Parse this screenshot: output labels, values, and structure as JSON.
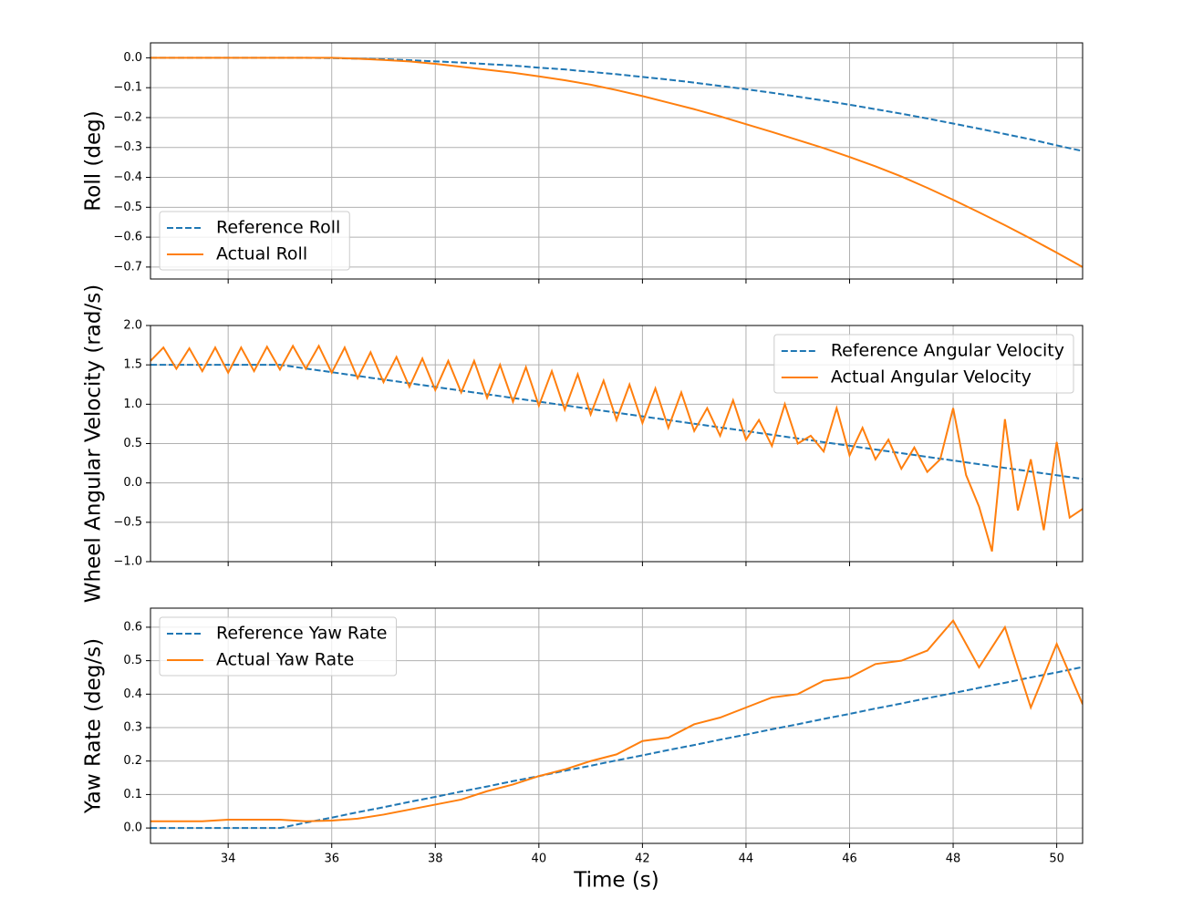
{
  "chart_data": [
    {
      "type": "line",
      "ylabel": "Roll (deg)",
      "legend": "lower left",
      "grid": true,
      "x": [
        32.5,
        33,
        33.5,
        34,
        34.5,
        35,
        35.5,
        36,
        36.5,
        37,
        37.5,
        38,
        38.5,
        39,
        39.5,
        40,
        40.5,
        41,
        41.5,
        42,
        42.5,
        43,
        43.5,
        44,
        44.5,
        45,
        45.5,
        46,
        46.5,
        47,
        47.5,
        48,
        48.5,
        49,
        49.5,
        50,
        50.5
      ],
      "xlim": [
        32.5,
        50.5
      ],
      "xticks": [
        34,
        36,
        38,
        40,
        42,
        44,
        46,
        48,
        50
      ],
      "ylim": [
        -0.74,
        0.05
      ],
      "yticks": [
        {
          "value": 0,
          "label": "0.0"
        },
        {
          "value": -0.1,
          "label": "−0.1"
        },
        {
          "value": -0.2,
          "label": "−0.2"
        },
        {
          "value": -0.3,
          "label": "−0.3"
        },
        {
          "value": -0.4,
          "label": "−0.4"
        },
        {
          "value": -0.5,
          "label": "−0.5"
        },
        {
          "value": -0.6,
          "label": "−0.6"
        },
        {
          "value": -0.7,
          "label": "−0.7"
        }
      ],
      "series": [
        {
          "name": "Reference Roll",
          "color": "#1f77b4",
          "linestyle": "dashed",
          "values": [
            0,
            0,
            0,
            0,
            0,
            0,
            0,
            -0.001,
            -0.003,
            -0.005,
            -0.008,
            -0.012,
            -0.016,
            -0.021,
            -0.026,
            -0.033,
            -0.039,
            -0.047,
            -0.055,
            -0.064,
            -0.073,
            -0.083,
            -0.094,
            -0.105,
            -0.117,
            -0.13,
            -0.143,
            -0.157,
            -0.172,
            -0.187,
            -0.203,
            -0.22,
            -0.237,
            -0.255,
            -0.273,
            -0.293,
            -0.312
          ]
        },
        {
          "name": "Actual Roll",
          "color": "#ff7f0e",
          "linestyle": "solid",
          "values": [
            0,
            0,
            0,
            0,
            0,
            0,
            0,
            0,
            -0.003,
            -0.007,
            -0.012,
            -0.02,
            -0.03,
            -0.04,
            -0.05,
            -0.062,
            -0.075,
            -0.09,
            -0.108,
            -0.128,
            -0.15,
            -0.172,
            -0.196,
            -0.222,
            -0.248,
            -0.275,
            -0.302,
            -0.332,
            -0.363,
            -0.397,
            -0.435,
            -0.475,
            -0.517,
            -0.56,
            -0.605,
            -0.652,
            -0.7
          ]
        }
      ]
    },
    {
      "type": "line",
      "ylabel": "Wheel Angular Velocity (rad/s)",
      "legend": "upper right",
      "grid": true,
      "x": [
        32.5,
        32.75,
        33,
        33.25,
        33.5,
        33.75,
        34,
        34.25,
        34.5,
        34.75,
        35,
        35.25,
        35.5,
        35.75,
        36,
        36.25,
        36.5,
        36.75,
        37,
        37.25,
        37.5,
        37.75,
        38,
        38.25,
        38.5,
        38.75,
        39,
        39.25,
        39.5,
        39.75,
        40,
        40.25,
        40.5,
        40.75,
        41,
        41.25,
        41.5,
        41.75,
        42,
        42.25,
        42.5,
        42.75,
        43,
        43.25,
        43.5,
        43.75,
        44,
        44.25,
        44.5,
        44.75,
        45,
        45.25,
        45.5,
        45.75,
        46,
        46.25,
        46.5,
        46.75,
        47,
        47.25,
        47.5,
        47.75,
        48,
        48.25,
        48.5,
        48.75,
        49,
        49.25,
        49.5,
        49.75,
        50,
        50.25,
        50.5
      ],
      "xlim": [
        32.5,
        50.5
      ],
      "xticks": [
        34,
        36,
        38,
        40,
        42,
        44,
        46,
        48,
        50
      ],
      "ylim": [
        -1.0,
        2.0
      ],
      "yticks": [
        {
          "value": 2,
          "label": "2.0"
        },
        {
          "value": 1.5,
          "label": "1.5"
        },
        {
          "value": 1,
          "label": "1.0"
        },
        {
          "value": 0.5,
          "label": "0.5"
        },
        {
          "value": 0,
          "label": "0.0"
        },
        {
          "value": -0.5,
          "label": "−0.5"
        },
        {
          "value": -1,
          "label": "−1.0"
        }
      ],
      "series": [
        {
          "name": "Reference Angular Velocity",
          "color": "#1f77b4",
          "linestyle": "dashed",
          "values": [
            1.5,
            1.5,
            1.5,
            1.5,
            1.5,
            1.5,
            1.5,
            1.5,
            1.5,
            1.5,
            1.5,
            1.477,
            1.453,
            1.43,
            1.407,
            1.383,
            1.36,
            1.336,
            1.313,
            1.29,
            1.266,
            1.243,
            1.22,
            1.196,
            1.173,
            1.149,
            1.126,
            1.103,
            1.079,
            1.056,
            1.033,
            1.009,
            0.986,
            0.962,
            0.939,
            0.916,
            0.892,
            0.869,
            0.846,
            0.822,
            0.799,
            0.775,
            0.752,
            0.729,
            0.705,
            0.682,
            0.659,
            0.635,
            0.612,
            0.588,
            0.565,
            0.542,
            0.518,
            0.495,
            0.472,
            0.448,
            0.425,
            0.401,
            0.378,
            0.355,
            0.331,
            0.308,
            0.285,
            0.261,
            0.238,
            0.214,
            0.191,
            0.168,
            0.144,
            0.121,
            0.098,
            0.074,
            0.051
          ]
        },
        {
          "name": "Actual Angular Velocity",
          "color": "#ff7f0e",
          "linestyle": "solid",
          "values": [
            1.55,
            1.72,
            1.45,
            1.71,
            1.42,
            1.72,
            1.4,
            1.72,
            1.42,
            1.73,
            1.44,
            1.74,
            1.45,
            1.74,
            1.4,
            1.72,
            1.33,
            1.66,
            1.28,
            1.6,
            1.22,
            1.58,
            1.18,
            1.55,
            1.15,
            1.55,
            1.08,
            1.5,
            1.03,
            1.47,
            0.98,
            1.42,
            0.93,
            1.38,
            0.87,
            1.3,
            0.8,
            1.25,
            0.76,
            1.2,
            0.7,
            1.15,
            0.66,
            0.95,
            0.6,
            1.05,
            0.55,
            0.8,
            0.47,
            1.0,
            0.5,
            0.6,
            0.4,
            0.95,
            0.35,
            0.7,
            0.3,
            0.55,
            0.18,
            0.45,
            0.14,
            0.3,
            0.95,
            0.1,
            -0.3,
            -0.87,
            0.81,
            -0.35,
            0.3,
            -0.6,
            0.52,
            -0.44,
            -0.33
          ]
        }
      ]
    },
    {
      "type": "line",
      "ylabel": "Yaw Rate (deg/s)",
      "xlabel": "Time (s)",
      "legend": "upper left",
      "grid": true,
      "x": [
        32.5,
        33,
        33.5,
        34,
        34.5,
        35,
        35.5,
        36,
        36.5,
        37,
        37.5,
        38,
        38.5,
        39,
        39.5,
        40,
        40.5,
        41,
        41.5,
        42,
        42.5,
        43,
        43.5,
        44,
        44.5,
        45,
        45.5,
        46,
        46.5,
        47,
        47.5,
        48,
        48.5,
        49,
        49.5,
        50,
        50.5
      ],
      "xlim": [
        32.5,
        50.5
      ],
      "xticks": [
        34,
        36,
        38,
        40,
        42,
        44,
        46,
        48,
        50
      ],
      "ylim": [
        -0.046,
        0.657
      ],
      "yticks": [
        {
          "value": 0,
          "label": "0.0"
        },
        {
          "value": 0.1,
          "label": "0.1"
        },
        {
          "value": 0.2,
          "label": "0.2"
        },
        {
          "value": 0.3,
          "label": "0.3"
        },
        {
          "value": 0.4,
          "label": "0.4"
        },
        {
          "value": 0.5,
          "label": "0.5"
        },
        {
          "value": 0.6,
          "label": "0.6"
        }
      ],
      "series": [
        {
          "name": "Reference Yaw Rate",
          "color": "#1f77b4",
          "linestyle": "dashed",
          "values": [
            0,
            0,
            0,
            0,
            0,
            0,
            0.016,
            0.031,
            0.047,
            0.062,
            0.078,
            0.093,
            0.109,
            0.124,
            0.14,
            0.155,
            0.171,
            0.186,
            0.202,
            0.217,
            0.233,
            0.248,
            0.264,
            0.279,
            0.295,
            0.31,
            0.326,
            0.341,
            0.357,
            0.372,
            0.388,
            0.403,
            0.419,
            0.434,
            0.45,
            0.465,
            0.481
          ]
        },
        {
          "name": "Actual Yaw Rate",
          "color": "#ff7f0e",
          "linestyle": "solid",
          "values": [
            0.02,
            0.02,
            0.02,
            0.025,
            0.025,
            0.025,
            0.02,
            0.022,
            0.028,
            0.04,
            0.055,
            0.07,
            0.085,
            0.11,
            0.13,
            0.155,
            0.175,
            0.2,
            0.22,
            0.26,
            0.27,
            0.31,
            0.33,
            0.36,
            0.39,
            0.4,
            0.44,
            0.45,
            0.49,
            0.5,
            0.53,
            0.62,
            0.48,
            0.6,
            0.36,
            0.55,
            0.37
          ]
        }
      ]
    }
  ]
}
